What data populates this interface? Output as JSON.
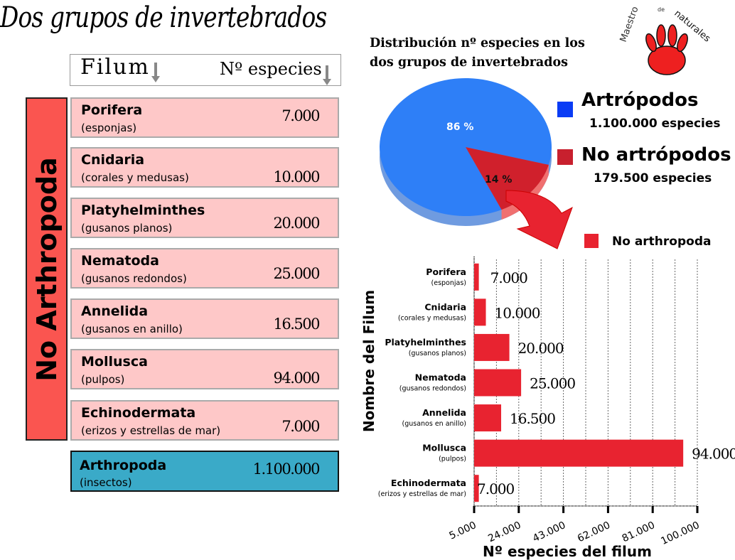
{
  "title": "Dos grupos de invertebrados",
  "table": {
    "header": {
      "col1": "Filum",
      "col2": "Nº especies"
    },
    "group_label": "No Arthropoda",
    "rows": [
      {
        "name": "Porifera",
        "common": "(esponjas)",
        "value": "7.000"
      },
      {
        "name": "Cnidaria",
        "common": "(corales y medusas)",
        "value": "10.000"
      },
      {
        "name": "Platyhelminthes",
        "common": "(gusanos planos)",
        "value": "20.000"
      },
      {
        "name": "Nematoda",
        "common": "(gusanos redondos)",
        "value": "25.000"
      },
      {
        "name": "Annelida",
        "common": "(gusanos en anillo)",
        "value": "16.500"
      },
      {
        "name": "Mollusca",
        "common": "(pulpos)",
        "value": "94.000"
      },
      {
        "name": "Echinodermata",
        "common": "(erizos y estrellas de mar)",
        "value": "7.000"
      }
    ],
    "arthropoda": {
      "name": "Arthropoda",
      "common": "(insectos)",
      "value": "1.100.000"
    }
  },
  "logo": {
    "text": "Maestro de naturales"
  },
  "chart_data": [
    {
      "type": "pie",
      "title": "Distribución nº especies en los dos grupos de invertebrados",
      "slices": [
        {
          "name": "Artrópodos",
          "detail": "1.100.000 especies",
          "value": 86,
          "label": "86 %",
          "color": "#2e7ff7"
        },
        {
          "name": "No artrópodos",
          "detail": "179.500 especies",
          "value": 14,
          "label": "14 %",
          "color": "#d0202c"
        }
      ],
      "legend_colors": [
        "#0a3cf5",
        "#c8202e"
      ],
      "legend": "right"
    },
    {
      "type": "bar",
      "orientation": "horizontal",
      "categories": [
        "Porifera",
        "Cnidaria",
        "Platyhelminthes",
        "Nematoda",
        "Annelida",
        "Mollusca",
        "Echinodermata"
      ],
      "subcategories": [
        "(esponjas)",
        "(corales y medusas)",
        "(gusanos planos)",
        "(gusanos redondos)",
        "(gusanos en anillo)",
        "(pulpos)",
        "(erizos y estrellas de mar)"
      ],
      "series": [
        {
          "name": "No arthropoda",
          "values": [
            7000,
            10000,
            20000,
            25000,
            16500,
            94000,
            7000
          ],
          "labels": [
            "7.000",
            "10.000",
            "20.000",
            "25.000",
            "16.500",
            "94.000",
            "7.000"
          ],
          "color": "#e82330"
        }
      ],
      "xlabel": "Nº especies del filum",
      "ylabel": "Nombre del Filum",
      "xlim": [
        5000,
        100000
      ],
      "xticks": [
        5000,
        24000,
        43000,
        62000,
        81000,
        100000
      ],
      "xtick_labels": [
        "5.000",
        "24.000",
        "43.000",
        "62.000",
        "81.000",
        "100.000"
      ],
      "grid": "vertical dotted",
      "legend": "top-right"
    }
  ]
}
